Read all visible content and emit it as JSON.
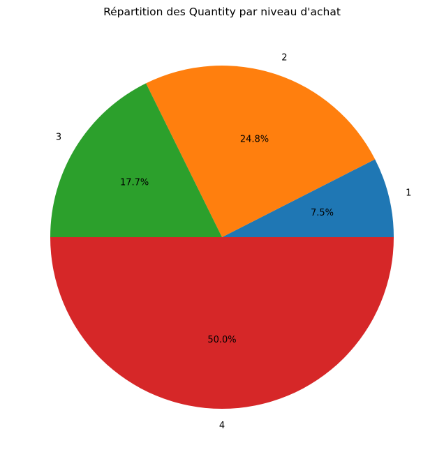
{
  "chart_data": {
    "type": "pie",
    "title": "Répartition des Quantity par niveau d'achat",
    "slices": [
      {
        "label": "1",
        "value": 7.5,
        "pct_text": "7.5%",
        "color": "#1f77b4"
      },
      {
        "label": "2",
        "value": 24.8,
        "pct_text": "24.8%",
        "color": "#ff7f0e"
      },
      {
        "label": "3",
        "value": 17.7,
        "pct_text": "17.7%",
        "color": "#2ca02c"
      },
      {
        "label": "4",
        "value": 50.0,
        "pct_text": "50.0%",
        "color": "#d62728"
      }
    ],
    "start_angle": 0,
    "direction": "counterclockwise"
  }
}
